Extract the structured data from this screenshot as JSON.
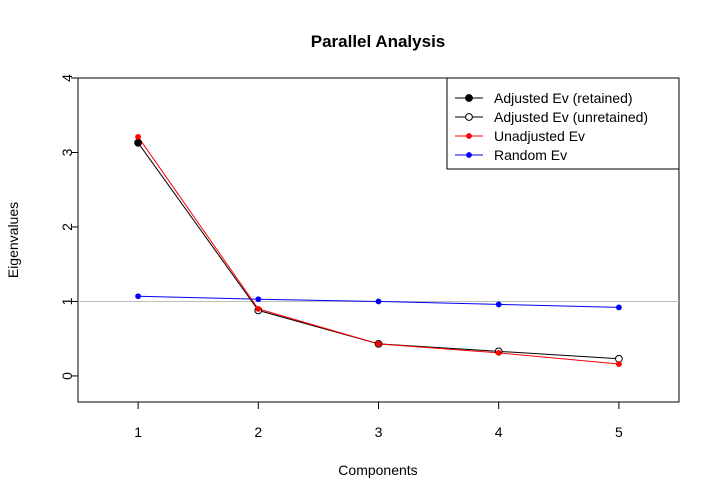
{
  "chart_data": {
    "type": "line",
    "title": "Parallel Analysis",
    "xlabel": "Components",
    "ylabel": "Eigenvalues",
    "x": [
      1,
      2,
      3,
      4,
      5
    ],
    "xlim": [
      0.5,
      5.5
    ],
    "ylim": [
      -0.35,
      4
    ],
    "xticks": [
      "1",
      "2",
      "3",
      "4",
      "5"
    ],
    "yticks": [
      "0",
      "1",
      "2",
      "3",
      "4"
    ],
    "reference_line": {
      "y": 1,
      "color": "#bebebe"
    },
    "legend_position": "top-right",
    "series": [
      {
        "name": "Adjusted Ev (retained)",
        "color": "#000000",
        "marker": "filled-circle",
        "points": [
          [
            1,
            3.13
          ]
        ]
      },
      {
        "name": "Adjusted Ev (unretained)",
        "color": "#000000",
        "marker": "open-circle",
        "points": [
          [
            2,
            0.88
          ],
          [
            3,
            0.43
          ],
          [
            4,
            0.33
          ],
          [
            5,
            0.23
          ]
        ]
      },
      {
        "name": "Unadjusted Ev",
        "color": "#ff0000",
        "marker": "small-filled-circle",
        "points": [
          [
            1,
            3.21
          ],
          [
            2,
            0.9
          ],
          [
            3,
            0.43
          ],
          [
            4,
            0.31
          ],
          [
            5,
            0.16
          ]
        ]
      },
      {
        "name": "Random Ev",
        "color": "#0000ff",
        "marker": "small-filled-circle",
        "points": [
          [
            1,
            1.07
          ],
          [
            2,
            1.03
          ],
          [
            3,
            1.0
          ],
          [
            4,
            0.96
          ],
          [
            5,
            0.92
          ]
        ]
      }
    ],
    "adjusted_line": {
      "color": "#000000",
      "values": [
        3.13,
        0.88,
        0.43,
        0.33,
        0.23
      ]
    }
  }
}
